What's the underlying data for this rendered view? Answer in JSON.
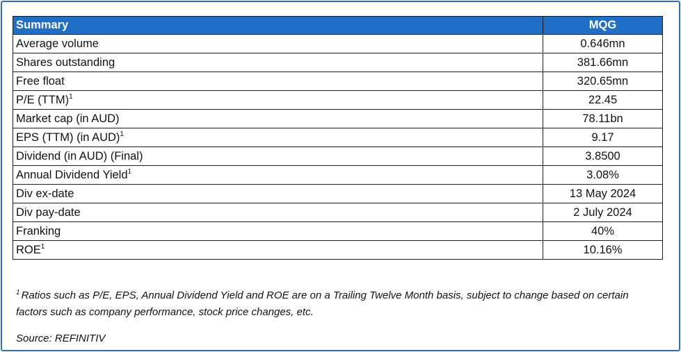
{
  "table": {
    "header": {
      "label": "Summary",
      "value": "MQG"
    },
    "rows": [
      {
        "label": "Average volume",
        "sup": "",
        "value": "0.646mn"
      },
      {
        "label": "Shares outstanding",
        "sup": "",
        "value": "381.66mn"
      },
      {
        "label": "Free float",
        "sup": "",
        "value": "320.65mn"
      },
      {
        "label": "P/E (TTM)",
        "sup": "1",
        "value": "22.45"
      },
      {
        "label": "Market cap (in AUD)",
        "sup": "",
        "value": "78.11bn"
      },
      {
        "label": "EPS (TTM) (in AUD)",
        "sup": "1",
        "value": "9.17"
      },
      {
        "label": "Dividend (in AUD) (Final)",
        "sup": "",
        "value": "3.8500"
      },
      {
        "label": "Annual Dividend Yield",
        "sup": "1",
        "value": "3.08%"
      },
      {
        "label": "Div ex-date",
        "sup": "",
        "value": "13 May 2024"
      },
      {
        "label": "Div pay-date",
        "sup": "",
        "value": "2 July 2024"
      },
      {
        "label": "Franking",
        "sup": "",
        "value": "40%"
      },
      {
        "label": "ROE",
        "sup": "1",
        "value": "10.16%"
      }
    ]
  },
  "footnote": {
    "marker": "1",
    "text": "Ratios such as P/E, EPS, Annual Dividend Yield and ROE are on a Trailing Twelve Month basis, subject to change based on certain factors such as company performance, stock price changes, etc."
  },
  "source": "Source: REFINITIV",
  "colors": {
    "header_bg": "#1f6fc6",
    "frame_border": "#2f6fb5"
  }
}
